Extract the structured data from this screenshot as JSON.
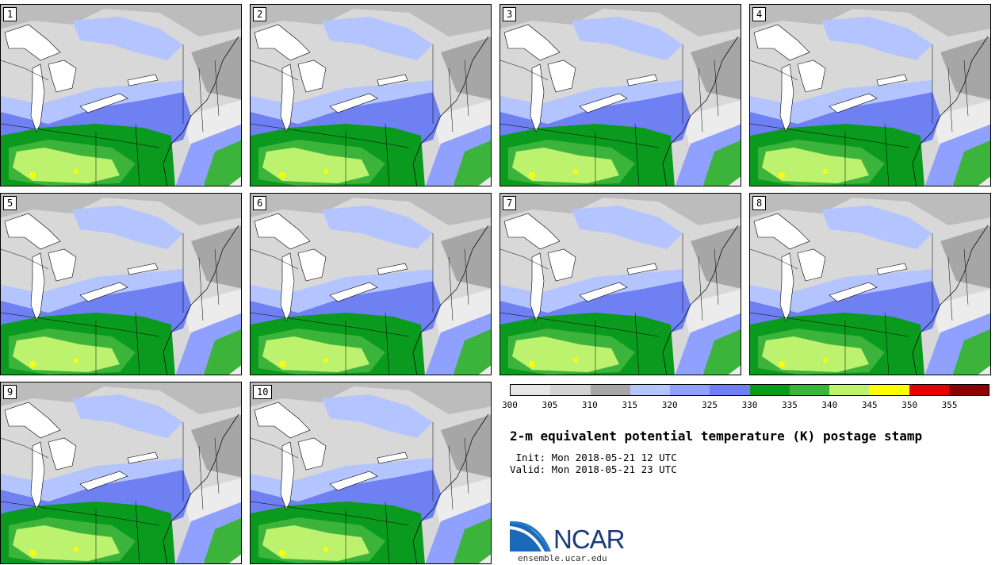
{
  "panels": [
    "1",
    "2",
    "3",
    "4",
    "5",
    "6",
    "7",
    "8",
    "9",
    "10"
  ],
  "colorbar": {
    "colors": [
      "#e6e6e6",
      "#d2d2d2",
      "#a6a6a6",
      "#b4c4ff",
      "#8fa0ff",
      "#6f80f2",
      "#0a9a1e",
      "#3cb43c",
      "#bcf26e",
      "#ffff00",
      "#e60000",
      "#8c0000"
    ],
    "labels": [
      "300",
      "305",
      "310",
      "315",
      "320",
      "325",
      "330",
      "335",
      "340",
      "345",
      "350",
      "355"
    ]
  },
  "title": "2-m equivalent potential temperature (K) postage stamp",
  "init": " Init: Mon 2018-05-21 12 UTC",
  "valid": "Valid: Mon 2018-05-21 23 UTC",
  "logo": {
    "text": "NCAR",
    "url": "ensemble.ucar.edu"
  },
  "colors": {
    "lakes": "#ffffff",
    "logo_blue": "#1a3a7a",
    "logo_accent": "#2878c8"
  }
}
